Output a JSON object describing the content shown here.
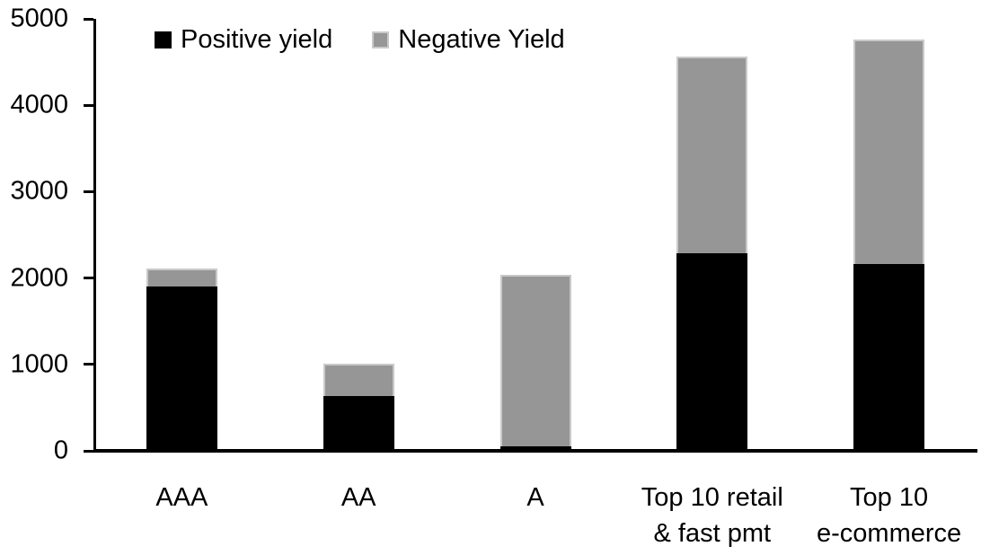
{
  "chart_data": {
    "type": "bar",
    "stacked": true,
    "title": "",
    "xlabel": "",
    "ylabel": "",
    "grid": false,
    "legend_position": "top",
    "ylim": [
      0,
      5000
    ],
    "yticks": [
      0,
      1000,
      2000,
      3000,
      4000,
      5000
    ],
    "ytick_labels": [
      "0",
      "1000",
      "2000",
      "3000",
      "4000",
      "5000"
    ],
    "categories": [
      {
        "label": "AAA",
        "lines": [
          "AAA"
        ]
      },
      {
        "label": "AA",
        "lines": [
          "AA"
        ]
      },
      {
        "label": "A",
        "lines": [
          "A"
        ]
      },
      {
        "label": "Top 10 retail & fast pmt",
        "lines": [
          "Top 10 retail",
          "& fast pmt"
        ]
      },
      {
        "label": "Top 10 e-commerce",
        "lines": [
          "Top 10",
          "e-commerce"
        ]
      }
    ],
    "series": [
      {
        "name": "Positive yield",
        "color": "#000000",
        "values": [
          1900,
          630,
          50,
          2290,
          2160
        ]
      },
      {
        "name": "Negative Yield",
        "color": "#969696",
        "values": [
          215,
          380,
          1985,
          2270,
          2600
        ]
      }
    ],
    "totals": [
      2115,
      1010,
      2035,
      4560,
      4760
    ]
  },
  "legend": {
    "items": [
      {
        "label": "Positive yield",
        "color": "#000000"
      },
      {
        "label": "Negative Yield",
        "color": "#969696"
      }
    ]
  },
  "colors": {
    "positive": "#000000",
    "negative": "#969696",
    "negative_border": "#c9c9c9",
    "axis": "#000000",
    "background": "#ffffff"
  }
}
